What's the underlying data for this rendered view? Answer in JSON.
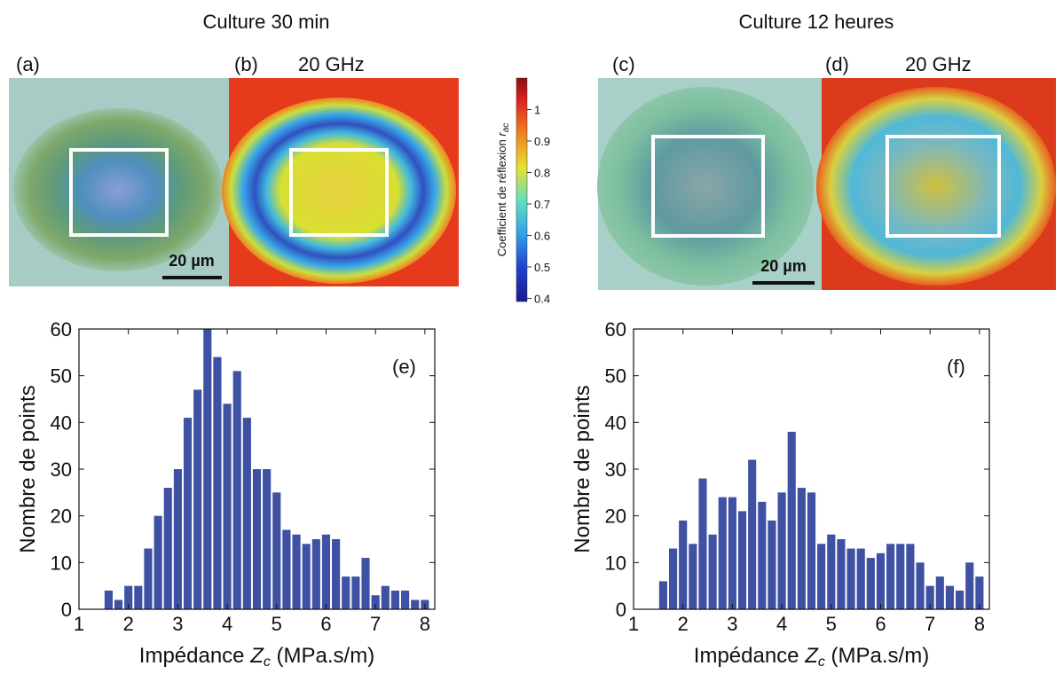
{
  "chart_data": [
    {
      "type": "histogram",
      "annotation": "(e)",
      "xlabel": {
        "text": "Impédance ",
        "var": "Z",
        "sub": "c",
        "unit": " (MPa.s/m)"
      },
      "ylabel": "Nombre de points",
      "bins": [
        1.5,
        1.7,
        1.9,
        2.1,
        2.3,
        2.5,
        2.7,
        2.9,
        3.1,
        3.3,
        3.5,
        3.7,
        3.9,
        4.1,
        4.3,
        4.5,
        4.7,
        4.9,
        5.1,
        5.3,
        5.5,
        5.7,
        5.9,
        6.1,
        6.3,
        6.5,
        6.7,
        6.9,
        7.1,
        7.3,
        7.5,
        7.7,
        7.9,
        8.1
      ],
      "values": [
        4,
        2,
        5,
        5,
        13,
        20,
        26,
        30,
        41,
        47,
        60,
        54,
        44,
        51,
        41,
        30,
        30,
        25,
        17,
        16,
        14,
        15,
        16,
        15,
        7,
        7,
        11,
        3,
        5,
        4,
        4,
        2,
        2
      ],
      "color": "#3f51a3",
      "xlim": [
        1,
        8.2
      ],
      "xticks": [
        1,
        2,
        3,
        4,
        5,
        6,
        7,
        8
      ],
      "ylim": [
        0,
        60
      ],
      "yticks": [
        0,
        10,
        20,
        30,
        40,
        50,
        60
      ]
    },
    {
      "type": "histogram",
      "annotation": "(f)",
      "xlabel": {
        "text": "Impédance ",
        "var": "Z",
        "sub": "c",
        "unit": " (MPa.s/m)"
      },
      "ylabel": "Nombre de points",
      "bins": [
        1.5,
        1.7,
        1.9,
        2.1,
        2.3,
        2.5,
        2.7,
        2.9,
        3.1,
        3.3,
        3.5,
        3.7,
        3.9,
        4.1,
        4.3,
        4.5,
        4.7,
        4.9,
        5.1,
        5.3,
        5.5,
        5.7,
        5.9,
        6.1,
        6.3,
        6.5,
        6.7,
        6.9,
        7.1,
        7.3,
        7.5,
        7.7,
        7.9,
        8.1
      ],
      "values": [
        6,
        13,
        19,
        14,
        28,
        16,
        24,
        24,
        21,
        32,
        23,
        19,
        25,
        38,
        26,
        25,
        14,
        16,
        15,
        13,
        13,
        11,
        12,
        14,
        14,
        14,
        10,
        5,
        7,
        5,
        4,
        10,
        7
      ],
      "color": "#3f51a3",
      "xlim": [
        1,
        8.2
      ],
      "xticks": [
        1,
        2,
        3,
        4,
        5,
        6,
        7,
        8
      ],
      "ylim": [
        0,
        60
      ],
      "yticks": [
        0,
        10,
        20,
        30,
        40,
        50,
        60
      ]
    }
  ],
  "figure": {
    "columns": [
      "Culture 30 min",
      "Culture 12 heures"
    ],
    "panels": [
      {
        "label": "(a)"
      },
      {
        "label": "(b)",
        "title": "20 GHz"
      },
      {
        "label": "(c)"
      },
      {
        "label": "(d)",
        "title": "20 GHz"
      }
    ],
    "scale_bars": [
      "20 µm",
      "20 µm"
    ],
    "colorbar": {
      "label": {
        "text": "Coefficient de réflexion ",
        "var": "r",
        "sub": "ac"
      },
      "lim": [
        0.39,
        1.1
      ],
      "ticks": [
        0.4,
        0.5,
        0.6,
        0.7,
        0.8,
        0.9,
        1
      ]
    }
  }
}
